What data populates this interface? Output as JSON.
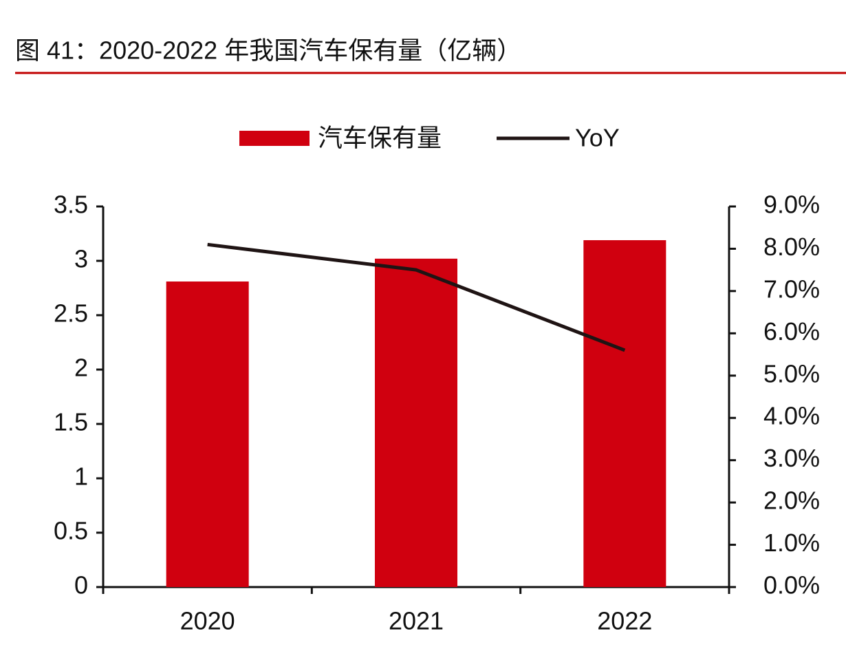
{
  "chart_data": {
    "type": "bar",
    "title": "图 41：2020-2022 年我国汽车保有量（亿辆）",
    "categories": [
      "2020",
      "2021",
      "2022"
    ],
    "series": [
      {
        "name": "汽车保有量",
        "type": "bar",
        "color": "#d0000f",
        "values": [
          2.81,
          3.02,
          3.19
        ]
      },
      {
        "name": "YoY",
        "type": "line",
        "axis": "y2",
        "color": "#1f1414",
        "values": [
          8.1,
          7.5,
          5.6
        ]
      }
    ],
    "ylim": [
      0,
      3.5
    ],
    "yticks": [
      0,
      0.5,
      1,
      1.5,
      2,
      2.5,
      3,
      3.5
    ],
    "y2lim": [
      0,
      9
    ],
    "y2ticks": [
      {
        "value": 0,
        "label": "0.0%"
      },
      {
        "value": 1,
        "label": "1.0%"
      },
      {
        "value": 2,
        "label": "2.0%"
      },
      {
        "value": 3,
        "label": "3.0%"
      },
      {
        "value": 4,
        "label": "4.0%"
      },
      {
        "value": 5,
        "label": "5.0%"
      },
      {
        "value": 6,
        "label": "6.0%"
      },
      {
        "value": 7,
        "label": "7.0%"
      },
      {
        "value": 8,
        "label": "8.0%"
      },
      {
        "value": 9,
        "label": "9.0%"
      }
    ],
    "grid": false,
    "legend": "top"
  }
}
